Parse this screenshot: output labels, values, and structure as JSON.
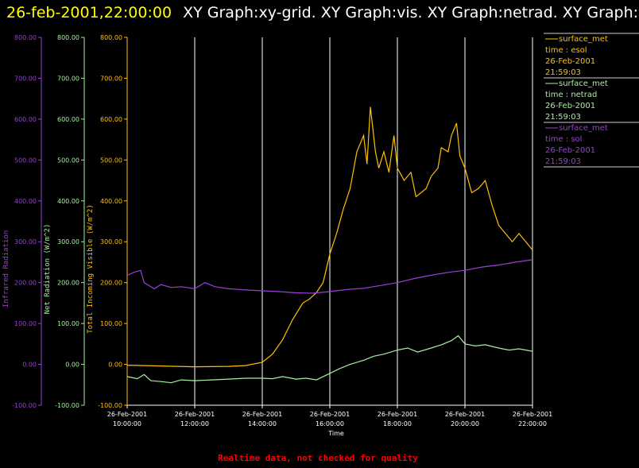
{
  "header": {
    "date_text": "26-feb-2001,22:00:00",
    "graphs_text": "XY Graph:xy-grid.  XY Graph:vis.  XY Graph:netrad.  XY Graph:ir.",
    "date_color": "#ffff00",
    "graphs_color": "#ffffff"
  },
  "footer": {
    "text": "Realtime data, not checked for quality",
    "color": "#ff0000"
  },
  "colors": {
    "ir": "#9b3fd6",
    "netrad": "#a6f0a0",
    "vis": "#ffc000",
    "grid": "#ffffff"
  },
  "legend": [
    {
      "title": "surface_met",
      "lines": [
        "time : esol",
        "26-Feb-2001",
        "21:59:03"
      ],
      "color": "#ffc000"
    },
    {
      "title": "surface_met",
      "lines": [
        "time : netrad",
        "26-Feb-2001",
        "21:59:03"
      ],
      "color": "#a6f0a0"
    },
    {
      "title": "surface_met",
      "lines": [
        "time : sol",
        "26-Feb-2001",
        "21:59:03"
      ],
      "color": "#9b3fd6"
    }
  ],
  "chart_data": {
    "type": "line",
    "xlabel": "Time",
    "x_ticks": [
      {
        "date": "26-Feb-2001",
        "time": "10:00:00",
        "hours": 10
      },
      {
        "date": "26-Feb-2001",
        "time": "12:00:00",
        "hours": 12
      },
      {
        "date": "26-Feb-2001",
        "time": "14:00:00",
        "hours": 14
      },
      {
        "date": "26-Feb-2001",
        "time": "16:00:00",
        "hours": 16
      },
      {
        "date": "26-Feb-2001",
        "time": "18:00:00",
        "hours": 18
      },
      {
        "date": "26-Feb-2001",
        "time": "20:00:00",
        "hours": 20
      },
      {
        "date": "26-Feb-2001",
        "time": "22:00:00",
        "hours": 22
      }
    ],
    "xlim": [
      10,
      22
    ],
    "axes": [
      {
        "key": "ir",
        "label": "Infrared Radiation",
        "ticks": [
          "800.00",
          "700.00",
          "600.00",
          "500.00",
          "400.00",
          "300.00",
          "200.00",
          "100.00",
          "0.00",
          "-100.00"
        ],
        "ylim": [
          -100,
          800
        ]
      },
      {
        "key": "netrad",
        "label": "Net Radiation (W/m^2)",
        "ticks": [
          "800.00",
          "700.00",
          "600.00",
          "500.00",
          "400.00",
          "300.00",
          "200.00",
          "100.00",
          "0.00",
          "-100.00"
        ],
        "ylim": [
          -100,
          800
        ]
      },
      {
        "key": "vis",
        "label": "Total Incoming Visible (W/m^2)",
        "ticks": [
          "800.00",
          "700.00",
          "600.00",
          "500.00",
          "400.00",
          "300.00",
          "200.00",
          "100.00",
          "0.00",
          "-100.00"
        ],
        "ylim": [
          -100,
          800
        ]
      }
    ],
    "series": [
      {
        "key": "vis",
        "points": [
          [
            10,
            -2
          ],
          [
            11,
            -4
          ],
          [
            12,
            -6
          ],
          [
            13,
            -5
          ],
          [
            13.5,
            -3
          ],
          [
            14,
            5
          ],
          [
            14.3,
            25
          ],
          [
            14.6,
            60
          ],
          [
            14.9,
            110
          ],
          [
            15.2,
            150
          ],
          [
            15.4,
            160
          ],
          [
            15.6,
            175
          ],
          [
            15.8,
            200
          ],
          [
            16,
            270
          ],
          [
            16.2,
            320
          ],
          [
            16.4,
            380
          ],
          [
            16.6,
            430
          ],
          [
            16.8,
            520
          ],
          [
            17,
            560
          ],
          [
            17.1,
            490
          ],
          [
            17.2,
            630
          ],
          [
            17.35,
            520
          ],
          [
            17.45,
            480
          ],
          [
            17.6,
            520
          ],
          [
            17.75,
            470
          ],
          [
            17.9,
            560
          ],
          [
            18,
            480
          ],
          [
            18.2,
            450
          ],
          [
            18.4,
            470
          ],
          [
            18.55,
            410
          ],
          [
            18.7,
            420
          ],
          [
            18.85,
            430
          ],
          [
            19,
            460
          ],
          [
            19.2,
            480
          ],
          [
            19.3,
            530
          ],
          [
            19.5,
            520
          ],
          [
            19.6,
            560
          ],
          [
            19.75,
            590
          ],
          [
            19.85,
            510
          ],
          [
            20,
            480
          ],
          [
            20.2,
            420
          ],
          [
            20.4,
            430
          ],
          [
            20.6,
            450
          ],
          [
            20.8,
            390
          ],
          [
            21,
            340
          ],
          [
            21.2,
            320
          ],
          [
            21.4,
            300
          ],
          [
            21.6,
            320
          ],
          [
            21.8,
            300
          ],
          [
            22,
            280
          ]
        ]
      },
      {
        "key": "ir",
        "points": [
          [
            10,
            218
          ],
          [
            10.2,
            225
          ],
          [
            10.4,
            230
          ],
          [
            10.5,
            200
          ],
          [
            10.8,
            185
          ],
          [
            11,
            195
          ],
          [
            11.3,
            188
          ],
          [
            11.6,
            190
          ],
          [
            12,
            185
          ],
          [
            12.3,
            200
          ],
          [
            12.6,
            190
          ],
          [
            13,
            185
          ],
          [
            13.5,
            182
          ],
          [
            14,
            180
          ],
          [
            14.5,
            178
          ],
          [
            15,
            175
          ],
          [
            15.5,
            174
          ],
          [
            16,
            178
          ],
          [
            16.5,
            183
          ],
          [
            17,
            186
          ],
          [
            17.5,
            193
          ],
          [
            18,
            200
          ],
          [
            18.5,
            210
          ],
          [
            19,
            218
          ],
          [
            19.5,
            225
          ],
          [
            20,
            230
          ],
          [
            20.5,
            238
          ],
          [
            21,
            243
          ],
          [
            21.5,
            250
          ],
          [
            22,
            256
          ]
        ]
      },
      {
        "key": "netrad",
        "points": [
          [
            10,
            -30
          ],
          [
            10.3,
            -35
          ],
          [
            10.5,
            -25
          ],
          [
            10.7,
            -40
          ],
          [
            11,
            -42
          ],
          [
            11.3,
            -45
          ],
          [
            11.6,
            -38
          ],
          [
            12,
            -40
          ],
          [
            12.5,
            -38
          ],
          [
            13,
            -36
          ],
          [
            13.5,
            -34
          ],
          [
            14,
            -34
          ],
          [
            14.3,
            -35
          ],
          [
            14.6,
            -30
          ],
          [
            15,
            -36
          ],
          [
            15.3,
            -34
          ],
          [
            15.6,
            -38
          ],
          [
            16,
            -22
          ],
          [
            16.3,
            -10
          ],
          [
            16.6,
            0
          ],
          [
            17,
            10
          ],
          [
            17.3,
            20
          ],
          [
            17.6,
            25
          ],
          [
            18,
            35
          ],
          [
            18.3,
            40
          ],
          [
            18.6,
            30
          ],
          [
            19,
            40
          ],
          [
            19.3,
            48
          ],
          [
            19.6,
            58
          ],
          [
            19.8,
            70
          ],
          [
            20,
            50
          ],
          [
            20.3,
            45
          ],
          [
            20.6,
            48
          ],
          [
            21,
            40
          ],
          [
            21.3,
            35
          ],
          [
            21.6,
            38
          ],
          [
            22,
            32
          ]
        ]
      }
    ]
  }
}
